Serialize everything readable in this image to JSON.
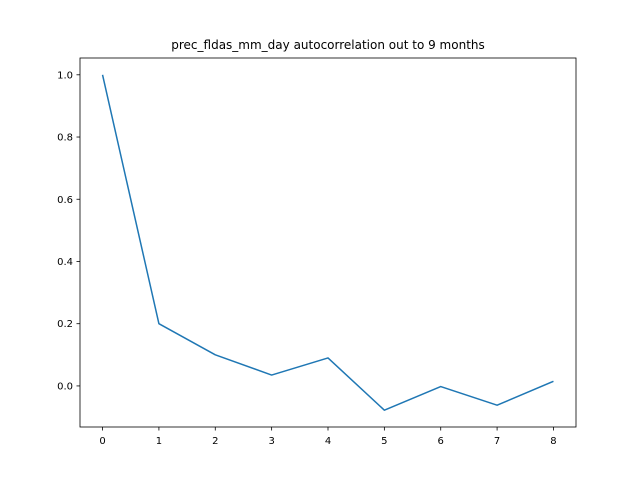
{
  "chart_data": {
    "type": "line",
    "title": "prec_fldas_mm_day autocorrelation out to 9 months",
    "xlabel": "",
    "ylabel": "",
    "x": [
      0,
      1,
      2,
      3,
      4,
      5,
      6,
      7,
      8
    ],
    "series": [
      {
        "values": [
          1.0,
          0.2,
          0.1,
          0.035,
          0.09,
          -0.078,
          -0.002,
          -0.062,
          0.015
        ],
        "color": "#1f77b4"
      }
    ],
    "xticks": [
      0,
      1,
      2,
      3,
      4,
      5,
      6,
      7,
      8
    ],
    "xtick_labels": [
      "0",
      "1",
      "2",
      "3",
      "4",
      "5",
      "6",
      "7",
      "8"
    ],
    "yticks": [
      0.0,
      0.2,
      0.4,
      0.6,
      0.8,
      1.0
    ],
    "ytick_labels": [
      "0.0",
      "0.2",
      "0.4",
      "0.6",
      "0.8",
      "1.0"
    ],
    "xlim": [
      -0.4,
      8.4
    ],
    "ylim": [
      -0.132,
      1.054
    ],
    "grid": false,
    "legend": "none"
  }
}
